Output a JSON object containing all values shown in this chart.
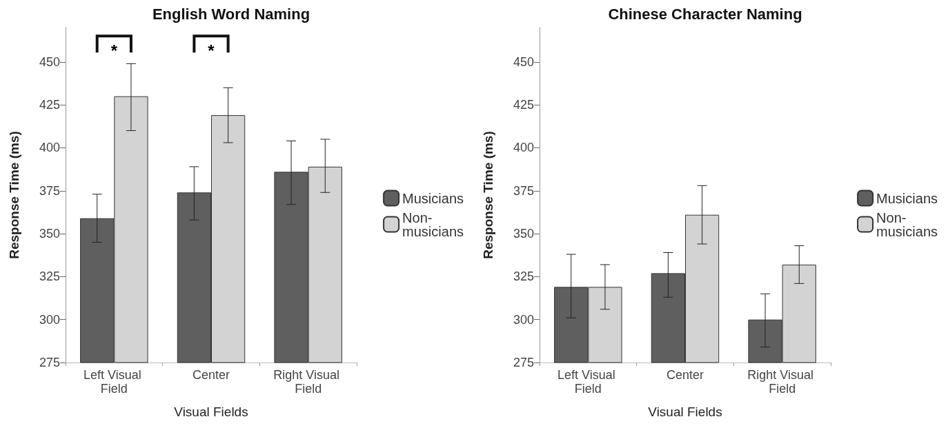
{
  "chart_data": [
    {
      "type": "bar",
      "title": "English Word Naming",
      "xlabel": "Visual Fields",
      "ylabel": "Response Time (ms)",
      "categories": [
        "Left Visual Field",
        "Center",
        "Right Visual Field"
      ],
      "series": [
        {
          "name": "Musicians",
          "color": "#5f5f5f",
          "values": [
            359,
            374,
            386
          ],
          "errors": [
            [
              345,
              373
            ],
            [
              358,
              389
            ],
            [
              367,
              404
            ]
          ]
        },
        {
          "name": "Non-musicians",
          "color": "#d3d3d3",
          "values": [
            430,
            419,
            389
          ],
          "errors": [
            [
              410,
              449
            ],
            [
              403,
              435
            ],
            [
              374,
              405
            ]
          ]
        }
      ],
      "ylim": [
        275,
        470
      ],
      "yticks": [
        275,
        300,
        325,
        350,
        375,
        400,
        425,
        450
      ],
      "grid": false,
      "legend": "right",
      "annotations": [
        "*",
        "*"
      ]
    },
    {
      "type": "bar",
      "title": "Chinese Character Naming",
      "xlabel": "Visual Fields",
      "ylabel": "Response Time (ms)",
      "categories": [
        "Left Visual Field",
        "Center",
        "Right Visual Field"
      ],
      "series": [
        {
          "name": "Musicians",
          "color": "#5f5f5f",
          "values": [
            319,
            327,
            300
          ],
          "errors": [
            [
              301,
              338
            ],
            [
              313,
              339
            ],
            [
              284,
              315
            ]
          ]
        },
        {
          "name": "Non-musicians",
          "color": "#d3d3d3",
          "values": [
            319,
            361,
            332
          ],
          "errors": [
            [
              306,
              332
            ],
            [
              344,
              378
            ],
            [
              321,
              343
            ]
          ]
        }
      ],
      "ylim": [
        275,
        470
      ],
      "yticks": [
        275,
        300,
        325,
        350,
        375,
        400,
        425,
        450
      ],
      "grid": false,
      "legend": "right"
    }
  ]
}
